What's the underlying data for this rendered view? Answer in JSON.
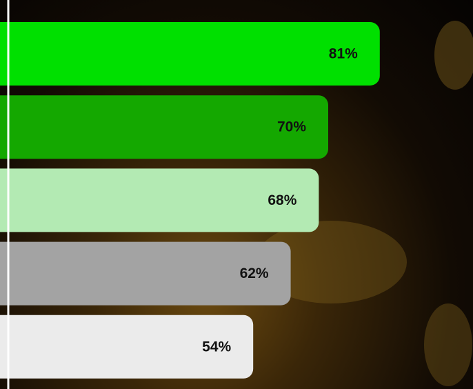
{
  "chart_data": {
    "type": "bar",
    "orientation": "horizontal",
    "categories": [
      null,
      null,
      null,
      null,
      null
    ],
    "values": [
      81,
      70,
      68,
      62,
      54
    ],
    "value_labels": [
      "81%",
      "70%",
      "68%",
      "62%",
      "54%"
    ],
    "colors": [
      "#00e000",
      "#14a800",
      "#b3eab3",
      "#a3a3a3",
      "#ebebeb"
    ],
    "xlim": [
      0,
      100
    ]
  }
}
